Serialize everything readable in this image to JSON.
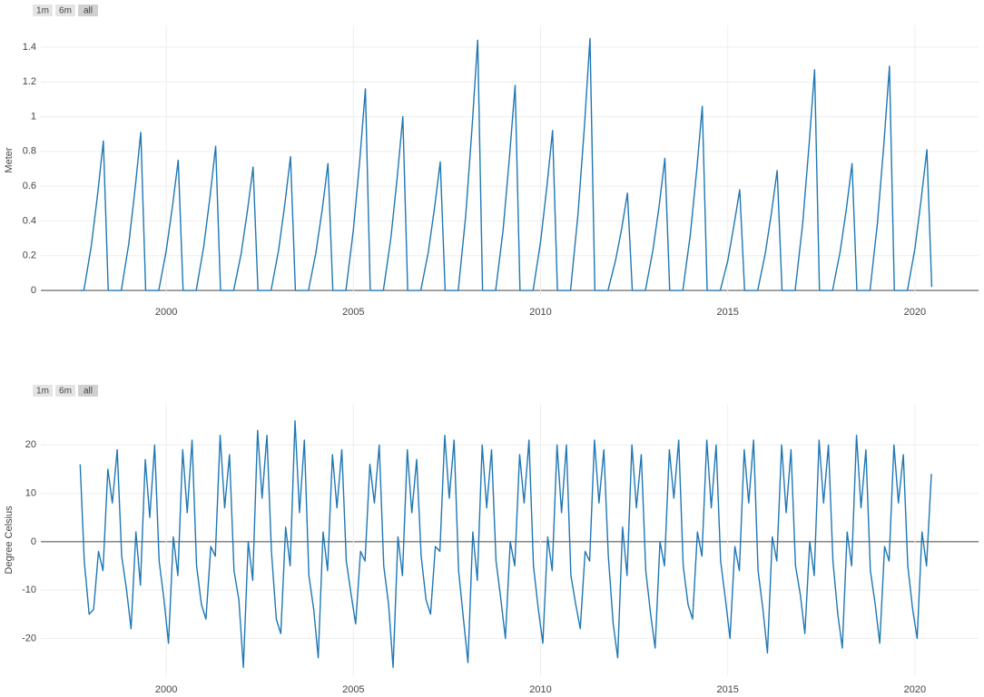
{
  "chart_data": [
    {
      "type": "line",
      "y_label": "Meter",
      "range_buttons": [
        "1m",
        "6m",
        "all"
      ],
      "grid": true,
      "color": "#1f77b4",
      "xlim": [
        1996.65,
        2021.7
      ],
      "xticks": [
        2000,
        2005,
        2010,
        2015,
        2020
      ],
      "ylim": [
        -0.026,
        1.525
      ],
      "yticks": [
        0,
        0.2,
        0.4,
        0.6,
        0.8,
        1,
        1.2,
        1.4
      ],
      "x": [
        1997.7,
        1997.8,
        1998.0,
        1998.17,
        1998.32,
        1998.45,
        1998.8,
        1999.0,
        1999.17,
        1999.32,
        1999.45,
        1999.8,
        2000.0,
        2000.17,
        2000.32,
        2000.45,
        2000.8,
        2001.0,
        2001.17,
        2001.32,
        2001.45,
        2001.8,
        2002.0,
        2002.17,
        2002.32,
        2002.45,
        2002.8,
        2003.0,
        2003.17,
        2003.32,
        2003.45,
        2003.8,
        2004.0,
        2004.17,
        2004.32,
        2004.45,
        2004.8,
        2005.0,
        2005.17,
        2005.32,
        2005.45,
        2005.8,
        2006.0,
        2006.17,
        2006.32,
        2006.45,
        2006.8,
        2007.0,
        2007.17,
        2007.32,
        2007.45,
        2007.8,
        2008.0,
        2008.17,
        2008.32,
        2008.45,
        2008.8,
        2009.0,
        2009.17,
        2009.32,
        2009.45,
        2009.8,
        2010.0,
        2010.17,
        2010.32,
        2010.45,
        2010.8,
        2011.0,
        2011.17,
        2011.32,
        2011.45,
        2011.8,
        2012.0,
        2012.17,
        2012.32,
        2012.45,
        2012.8,
        2013.0,
        2013.17,
        2013.32,
        2013.45,
        2013.8,
        2014.0,
        2014.17,
        2014.32,
        2014.45,
        2014.8,
        2015.0,
        2015.17,
        2015.32,
        2015.45,
        2015.8,
        2016.0,
        2016.17,
        2016.32,
        2016.45,
        2016.8,
        2017.0,
        2017.17,
        2017.32,
        2017.45,
        2017.8,
        2018.0,
        2018.17,
        2018.32,
        2018.45,
        2018.8,
        2019.0,
        2019.17,
        2019.32,
        2019.45,
        2019.8,
        2020.0,
        2020.17,
        2020.32,
        2020.45
      ],
      "values": [
        0,
        0,
        0.26,
        0.56,
        0.86,
        0,
        0,
        0.27,
        0.59,
        0.91,
        0,
        0,
        0.23,
        0.49,
        0.75,
        0,
        0,
        0.25,
        0.54,
        0.83,
        0,
        0,
        0.21,
        0.46,
        0.71,
        0,
        0,
        0.23,
        0.5,
        0.77,
        0,
        0,
        0.22,
        0.47,
        0.73,
        0,
        0,
        0.35,
        0.75,
        1.16,
        0,
        0,
        0.3,
        0.65,
        1.0,
        0,
        0,
        0.22,
        0.48,
        0.74,
        0,
        0,
        0.43,
        0.94,
        1.44,
        0,
        0,
        0.35,
        0.77,
        1.18,
        0,
        0,
        0.28,
        0.6,
        0.92,
        0,
        0,
        0.44,
        0.94,
        1.45,
        0,
        0,
        0.17,
        0.36,
        0.56,
        0,
        0,
        0.23,
        0.49,
        0.76,
        0,
        0,
        0.32,
        0.69,
        1.06,
        0,
        0,
        0.17,
        0.38,
        0.58,
        0,
        0,
        0.21,
        0.45,
        0.69,
        0,
        0,
        0.38,
        0.83,
        1.27,
        0,
        0,
        0.22,
        0.47,
        0.73,
        0,
        0,
        0.39,
        0.84,
        1.29,
        0,
        0,
        0.24,
        0.53,
        0.81,
        0.02
      ]
    },
    {
      "type": "line",
      "y_label": "Degree Celsius",
      "range_buttons": [
        "1m",
        "6m",
        "all"
      ],
      "grid": true,
      "color": "#1f77b4",
      "xlim": [
        1996.65,
        2021.7
      ],
      "xticks": [
        2000,
        2005,
        2010,
        2015,
        2020
      ],
      "ylim": [
        -27.8,
        28.5
      ],
      "yticks": [
        -20,
        -10,
        0,
        10,
        20
      ],
      "x": [
        1997.7,
        1997.81,
        1997.94,
        1998.06,
        1998.19,
        1998.31,
        1998.44,
        1998.56,
        1998.69,
        1998.81,
        1998.94,
        1999.06,
        1999.19,
        1999.31,
        1999.44,
        1999.56,
        1999.69,
        1999.81,
        1999.94,
        2000.06,
        2000.19,
        2000.31,
        2000.44,
        2000.56,
        2000.69,
        2000.81,
        2000.94,
        2001.06,
        2001.19,
        2001.31,
        2001.44,
        2001.56,
        2001.69,
        2001.81,
        2001.94,
        2002.06,
        2002.19,
        2002.31,
        2002.44,
        2002.56,
        2002.69,
        2002.81,
        2002.94,
        2003.06,
        2003.19,
        2003.31,
        2003.44,
        2003.56,
        2003.69,
        2003.81,
        2003.94,
        2004.06,
        2004.19,
        2004.31,
        2004.44,
        2004.56,
        2004.69,
        2004.81,
        2004.94,
        2005.06,
        2005.19,
        2005.31,
        2005.44,
        2005.56,
        2005.69,
        2005.81,
        2005.94,
        2006.06,
        2006.19,
        2006.31,
        2006.44,
        2006.56,
        2006.69,
        2006.81,
        2006.94,
        2007.06,
        2007.19,
        2007.31,
        2007.44,
        2007.56,
        2007.69,
        2007.81,
        2007.94,
        2008.06,
        2008.19,
        2008.31,
        2008.44,
        2008.56,
        2008.69,
        2008.81,
        2008.94,
        2009.06,
        2009.19,
        2009.31,
        2009.44,
        2009.56,
        2009.69,
        2009.81,
        2009.94,
        2010.06,
        2010.19,
        2010.31,
        2010.44,
        2010.56,
        2010.69,
        2010.81,
        2010.94,
        2011.06,
        2011.19,
        2011.31,
        2011.44,
        2011.56,
        2011.69,
        2011.81,
        2011.94,
        2012.06,
        2012.19,
        2012.31,
        2012.44,
        2012.56,
        2012.69,
        2012.81,
        2012.94,
        2013.06,
        2013.19,
        2013.31,
        2013.44,
        2013.56,
        2013.69,
        2013.81,
        2013.94,
        2014.06,
        2014.19,
        2014.31,
        2014.44,
        2014.56,
        2014.69,
        2014.81,
        2014.94,
        2015.06,
        2015.19,
        2015.31,
        2015.44,
        2015.56,
        2015.69,
        2015.81,
        2015.94,
        2016.06,
        2016.19,
        2016.31,
        2016.44,
        2016.56,
        2016.69,
        2016.81,
        2016.94,
        2017.06,
        2017.19,
        2017.31,
        2017.44,
        2017.56,
        2017.69,
        2017.81,
        2017.94,
        2018.06,
        2018.19,
        2018.31,
        2018.44,
        2018.56,
        2018.69,
        2018.81,
        2018.94,
        2019.06,
        2019.19,
        2019.31,
        2019.44,
        2019.56,
        2019.69,
        2019.81,
        2019.94,
        2020.06,
        2020.19,
        2020.31,
        2020.44
      ],
      "values": [
        16,
        -4,
        -15,
        -14,
        -2,
        -6,
        15,
        8,
        19,
        -3,
        -10,
        -18,
        2,
        -9,
        17,
        5,
        20,
        -4,
        -12,
        -21,
        1,
        -7,
        19,
        6,
        21,
        -5,
        -13,
        -16,
        -1,
        -3,
        22,
        7,
        18,
        -6,
        -12,
        -26,
        0,
        -8,
        23,
        9,
        22,
        -2,
        -16,
        -19,
        3,
        -5,
        25,
        6,
        21,
        -7,
        -14,
        -24,
        2,
        -6,
        18,
        7,
        19,
        -4,
        -11,
        -17,
        -2,
        -4,
        16,
        8,
        20,
        -5,
        -13,
        -26,
        1,
        -7,
        19,
        6,
        17,
        -3,
        -12,
        -15,
        -1,
        -2,
        22,
        9,
        21,
        -6,
        -16,
        -25,
        2,
        -8,
        20,
        7,
        19,
        -4,
        -12,
        -20,
        0,
        -5,
        18,
        8,
        21,
        -5,
        -14,
        -21,
        1,
        -6,
        20,
        6,
        20,
        -7,
        -13,
        -18,
        -2,
        -4,
        21,
        8,
        19,
        -3,
        -17,
        -24,
        3,
        -7,
        20,
        7,
        18,
        -6,
        -15,
        -22,
        0,
        -5,
        19,
        9,
        21,
        -5,
        -13,
        -16,
        2,
        -3,
        21,
        7,
        20,
        -4,
        -12,
        -20,
        -1,
        -6,
        19,
        8,
        21,
        -6,
        -14,
        -23,
        1,
        -4,
        20,
        6,
        19,
        -5,
        -11,
        -19,
        0,
        -7,
        21,
        8,
        20,
        -4,
        -15,
        -22,
        2,
        -5,
        22,
        7,
        19,
        -6,
        -13,
        -21,
        -1,
        -4,
        20,
        8,
        18,
        -5,
        -14,
        -20,
        2,
        -5,
        14
      ]
    }
  ]
}
